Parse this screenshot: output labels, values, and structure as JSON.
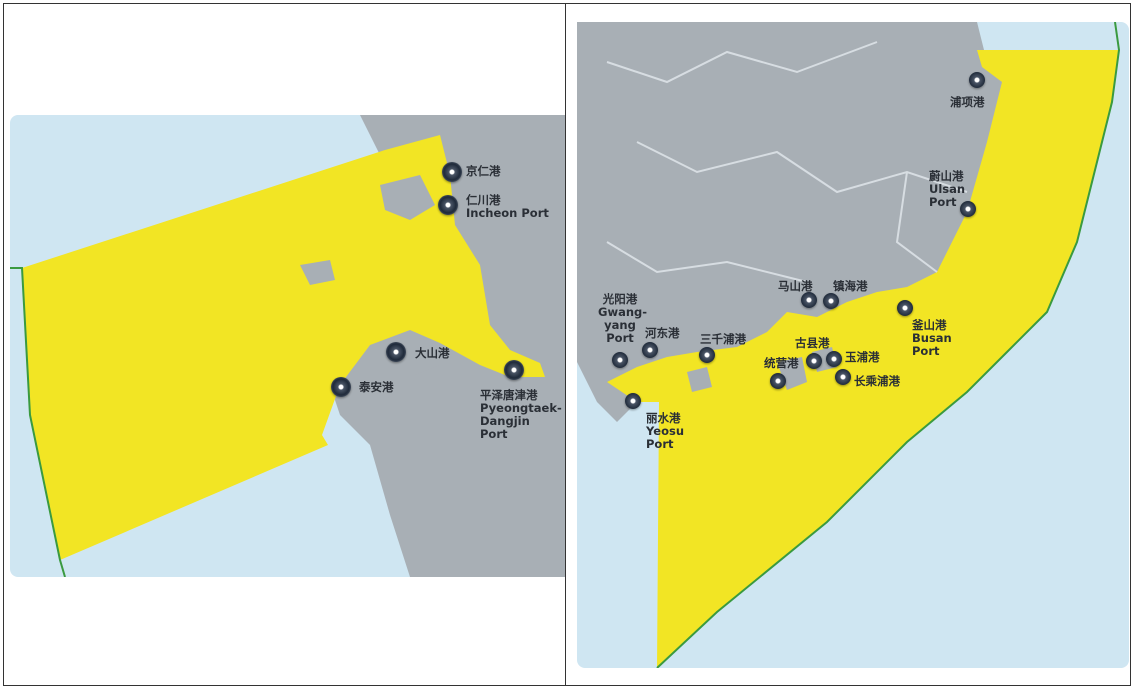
{
  "colors": {
    "sea": "#cfe6f2",
    "land": "#a8afb5",
    "zone": "#f2e524",
    "boundary": "#3a9a40",
    "marker": "#1f2a3a"
  },
  "left_map": {
    "ports": [
      {
        "zh": "京仁港",
        "en": ""
      },
      {
        "zh": "仁川港",
        "en": "Incheon Port"
      },
      {
        "zh": "大山港",
        "en": ""
      },
      {
        "zh": "泰安港",
        "en": ""
      },
      {
        "zh": "平泽唐津港",
        "en": "Pyeongtaek-Dangjin Port"
      }
    ]
  },
  "right_map": {
    "ports": [
      {
        "zh": "浦项港",
        "en": ""
      },
      {
        "zh": "蔚山港",
        "en": "Ulsan Port"
      },
      {
        "zh": "釜山港",
        "en": "Busan Port"
      },
      {
        "zh": "马山港",
        "en": ""
      },
      {
        "zh": "镇海港",
        "en": ""
      },
      {
        "zh": "古县港",
        "en": ""
      },
      {
        "zh": "玉浦港",
        "en": ""
      },
      {
        "zh": "长乘浦港",
        "en": ""
      },
      {
        "zh": "统营港",
        "en": ""
      },
      {
        "zh": "三千浦港",
        "en": ""
      },
      {
        "zh": "河东港",
        "en": ""
      },
      {
        "zh": "光阳港",
        "en": "Gwang-yang Port"
      },
      {
        "zh": "丽水港",
        "en": "Yeosu Port"
      }
    ]
  }
}
